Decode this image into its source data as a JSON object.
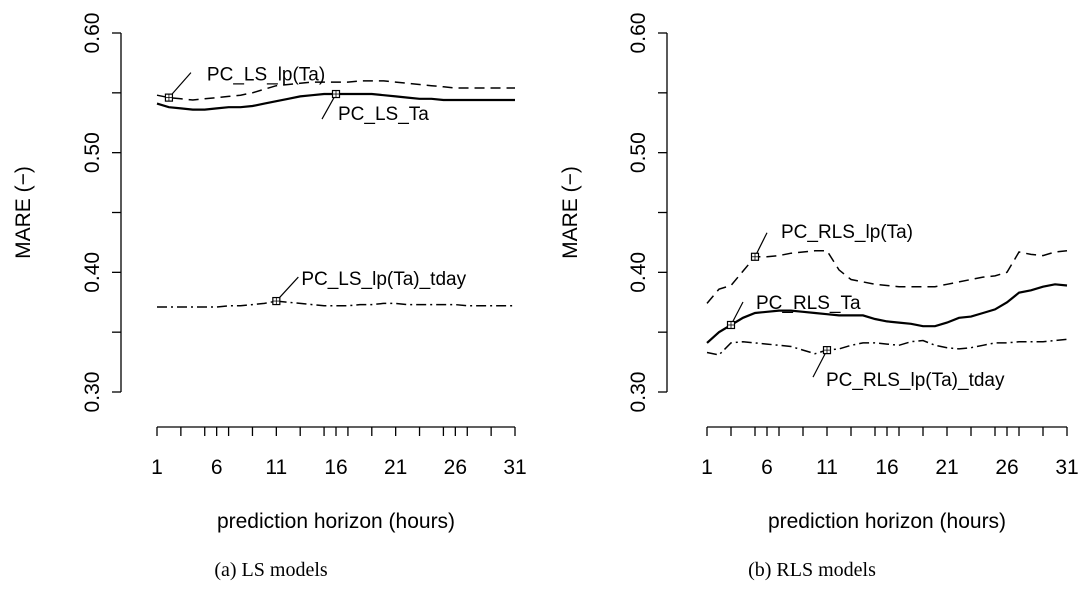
{
  "chart_data": [
    {
      "type": "line",
      "caption": "(a) LS models",
      "xlabel": "prediction horizon (hours)",
      "ylabel": "MARE (−)",
      "xlim": [
        1,
        31
      ],
      "ylim": [
        0.3,
        0.6
      ],
      "x_ticks": [
        "1",
        "6",
        "11",
        "16",
        "21",
        "26",
        "31"
      ],
      "y_ticks": [
        "0.30",
        "0.40",
        "0.50",
        "0.60"
      ],
      "grid": false,
      "x": [
        1,
        2,
        3,
        4,
        5,
        6,
        7,
        8,
        9,
        10,
        11,
        12,
        13,
        14,
        15,
        16,
        17,
        18,
        19,
        20,
        21,
        22,
        23,
        24,
        25,
        26,
        27,
        28,
        29,
        30,
        31
      ],
      "series": [
        {
          "name": "PC_LS_lp(Ta)",
          "style": "dashed",
          "label_at": 2,
          "values": [
            0.548,
            0.546,
            0.545,
            0.544,
            0.545,
            0.546,
            0.547,
            0.548,
            0.55,
            0.553,
            0.556,
            0.557,
            0.558,
            0.559,
            0.559,
            0.559,
            0.559,
            0.56,
            0.56,
            0.56,
            0.559,
            0.558,
            0.557,
            0.556,
            0.555,
            0.554,
            0.554,
            0.554,
            0.554,
            0.554,
            0.554
          ]
        },
        {
          "name": "PC_LS_Ta",
          "style": "solid",
          "label_at": 16,
          "values": [
            0.541,
            0.538,
            0.537,
            0.536,
            0.536,
            0.537,
            0.538,
            0.538,
            0.539,
            0.541,
            0.543,
            0.545,
            0.547,
            0.548,
            0.549,
            0.549,
            0.549,
            0.549,
            0.549,
            0.548,
            0.547,
            0.546,
            0.545,
            0.545,
            0.544,
            0.544,
            0.544,
            0.544,
            0.544,
            0.544,
            0.544
          ]
        },
        {
          "name": "PC_LS_lp(Ta)_tday",
          "style": "dashdot",
          "label_at": 11,
          "values": [
            0.371,
            0.371,
            0.371,
            0.371,
            0.371,
            0.371,
            0.372,
            0.372,
            0.373,
            0.374,
            0.376,
            0.375,
            0.374,
            0.373,
            0.372,
            0.372,
            0.372,
            0.373,
            0.373,
            0.374,
            0.374,
            0.373,
            0.373,
            0.373,
            0.373,
            0.373,
            0.372,
            0.372,
            0.372,
            0.372,
            0.372
          ]
        }
      ],
      "series_labels": [
        "PC_LS_lp(Ta)",
        "PC_LS_Ta",
        "PC_LS_lp(Ta)_tday"
      ]
    },
    {
      "type": "line",
      "caption": "(b) RLS models",
      "xlabel": "prediction horizon (hours)",
      "ylabel": "MARE (−)",
      "xlim": [
        1,
        31
      ],
      "ylim": [
        0.3,
        0.6
      ],
      "x_ticks": [
        "1",
        "6",
        "11",
        "16",
        "21",
        "26",
        "31"
      ],
      "y_ticks": [
        "0.30",
        "0.40",
        "0.50",
        "0.60"
      ],
      "grid": false,
      "x": [
        1,
        2,
        3,
        4,
        5,
        6,
        7,
        8,
        9,
        10,
        11,
        12,
        13,
        14,
        15,
        16,
        17,
        18,
        19,
        20,
        21,
        22,
        23,
        24,
        25,
        26,
        27,
        28,
        29,
        30,
        31
      ],
      "series": [
        {
          "name": "PC_RLS_lp(Ta)",
          "style": "dashed",
          "label_at": 5,
          "values": [
            0.374,
            0.386,
            0.389,
            0.401,
            0.413,
            0.413,
            0.414,
            0.416,
            0.417,
            0.418,
            0.418,
            0.402,
            0.394,
            0.392,
            0.39,
            0.389,
            0.388,
            0.388,
            0.388,
            0.388,
            0.39,
            0.392,
            0.394,
            0.396,
            0.397,
            0.4,
            0.417,
            0.415,
            0.414,
            0.417,
            0.418
          ]
        },
        {
          "name": "PC_RLS_Ta",
          "style": "solid",
          "label_at": 3,
          "values": [
            0.341,
            0.35,
            0.356,
            0.362,
            0.366,
            0.367,
            0.368,
            0.368,
            0.367,
            0.366,
            0.365,
            0.364,
            0.364,
            0.364,
            0.361,
            0.359,
            0.358,
            0.357,
            0.355,
            0.355,
            0.358,
            0.362,
            0.363,
            0.366,
            0.369,
            0.375,
            0.383,
            0.385,
            0.388,
            0.39,
            0.389
          ]
        },
        {
          "name": "PC_RLS_lp(Ta)_tday",
          "style": "dashdot",
          "label_at": 11,
          "values": [
            0.333,
            0.331,
            0.341,
            0.342,
            0.341,
            0.34,
            0.339,
            0.338,
            0.335,
            0.332,
            0.335,
            0.336,
            0.339,
            0.341,
            0.341,
            0.34,
            0.339,
            0.342,
            0.343,
            0.339,
            0.337,
            0.336,
            0.337,
            0.339,
            0.341,
            0.341,
            0.342,
            0.342,
            0.342,
            0.343,
            0.344
          ]
        }
      ],
      "series_labels": [
        "PC_RLS_lp(Ta)",
        "PC_RLS_Ta",
        "PC_RLS_lp(Ta)_tday"
      ]
    }
  ]
}
